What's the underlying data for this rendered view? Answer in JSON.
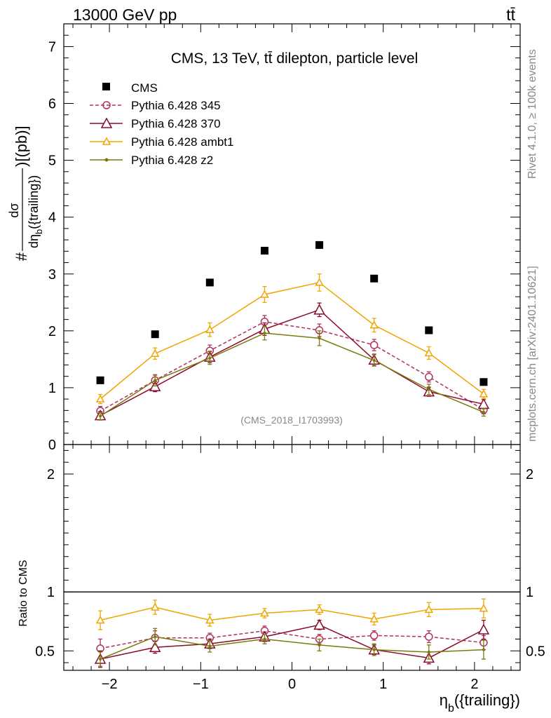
{
  "header": {
    "left": "13000 GeV pp",
    "right": "tt̄"
  },
  "side_labels": {
    "rivet": "Rivet 4.1.0, ≥ 100k events",
    "mcplots": "mcplots.cern.ch [arXiv:2401.10621]"
  },
  "colors": {
    "cms": "#000000",
    "p345": "#b03060",
    "p370": "#8b0a2a",
    "ambt1": "#f0a500",
    "z2": "#7a7a0a"
  },
  "chart_data": [
    {
      "type": "line",
      "panel": "main",
      "title": "CMS, 13 TeV, tt̄ dilepton, particle level",
      "watermark": "(CMS_2018_I1703993)",
      "ylabel_prefix": "#",
      "ylabel_frac_num": "dσ",
      "ylabel_frac_den": "dη",
      "ylabel_frac_den_sub": "b",
      "ylabel_frac_den_tail": "({trailing})",
      "ylabel_suffix": ")[(pb)]",
      "xlabel": "η",
      "xlabel_sub": "b",
      "xlabel_tail": "({trailing})",
      "xlim": [
        -2.5,
        2.5
      ],
      "ylim": [
        0,
        7.4
      ],
      "yticks": [
        "0",
        "1",
        "2",
        "3",
        "4",
        "5",
        "6",
        "7"
      ],
      "x": [
        -2.1,
        -1.5,
        -0.9,
        -0.3,
        0.3,
        0.9,
        1.5,
        2.1
      ],
      "series": [
        {
          "name": "CMS",
          "key": "cms",
          "marker": "square",
          "style": "none",
          "values": [
            1.13,
            1.94,
            2.85,
            3.41,
            3.51,
            2.92,
            2.01,
            1.1
          ],
          "err": [
            0,
            0,
            0,
            0,
            0,
            0,
            0,
            0
          ]
        },
        {
          "name": "Pythia 6.428 345",
          "key": "p345",
          "marker": "circle",
          "style": "dashed",
          "values": [
            0.59,
            1.13,
            1.65,
            2.16,
            2.01,
            1.75,
            1.19,
            0.61
          ],
          "err": [
            0.08,
            0.09,
            0.1,
            0.11,
            0.11,
            0.1,
            0.09,
            0.07
          ]
        },
        {
          "name": "Pythia 6.428 370",
          "key": "p370",
          "marker": "triangle",
          "style": "solid",
          "values": [
            0.51,
            1.02,
            1.54,
            2.03,
            2.37,
            1.49,
            0.93,
            0.71
          ],
          "err": [
            0.07,
            0.09,
            0.1,
            0.11,
            0.12,
            0.1,
            0.08,
            0.08
          ]
        },
        {
          "name": "Pythia 6.428 ambt1",
          "key": "ambt1",
          "marker": "triangle-small",
          "style": "solid",
          "values": [
            0.8,
            1.6,
            2.02,
            2.64,
            2.85,
            2.1,
            1.61,
            0.89
          ],
          "err": [
            0.08,
            0.1,
            0.12,
            0.14,
            0.15,
            0.12,
            0.11,
            0.08
          ]
        },
        {
          "name": "Pythia 6.428 z2",
          "key": "z2",
          "marker": "dot",
          "style": "solid",
          "values": [
            0.5,
            1.13,
            1.52,
            1.96,
            1.87,
            1.48,
            0.97,
            0.57
          ],
          "err": [
            0.07,
            0.1,
            0.11,
            0.12,
            0.13,
            0.1,
            0.09,
            0.07
          ]
        }
      ]
    },
    {
      "type": "line",
      "panel": "ratio",
      "ylabel": "Ratio to CMS",
      "xlim": [
        -2.5,
        2.5
      ],
      "ylim": [
        0.335,
        2.25
      ],
      "yticks": [
        "0.5",
        "1",
        "2"
      ],
      "xticks": [
        "−2",
        "−1",
        "0",
        "1",
        "2"
      ],
      "x": [
        -2.1,
        -1.5,
        -0.9,
        -0.3,
        0.3,
        0.9,
        1.5,
        2.1
      ],
      "reference": 1,
      "series": [
        {
          "name": "Pythia 6.428 345",
          "key": "p345",
          "marker": "circle",
          "style": "dashed",
          "values": [
            0.52,
            0.61,
            0.61,
            0.67,
            0.6,
            0.63,
            0.62,
            0.57
          ],
          "err": [
            0.08,
            0.06,
            0.04,
            0.04,
            0.04,
            0.04,
            0.05,
            0.06
          ]
        },
        {
          "name": "Pythia 6.428 370",
          "key": "p370",
          "marker": "triangle",
          "style": "solid",
          "values": [
            0.43,
            0.53,
            0.56,
            0.62,
            0.72,
            0.51,
            0.44,
            0.68
          ],
          "err": [
            0.07,
            0.05,
            0.04,
            0.04,
            0.04,
            0.04,
            0.05,
            0.08
          ]
        },
        {
          "name": "Pythia 6.428 ambt1",
          "key": "ambt1",
          "marker": "triangle-small",
          "style": "solid",
          "values": [
            0.76,
            0.87,
            0.76,
            0.82,
            0.85,
            0.77,
            0.85,
            0.86
          ],
          "err": [
            0.08,
            0.06,
            0.05,
            0.04,
            0.04,
            0.05,
            0.06,
            0.08
          ]
        },
        {
          "name": "Pythia 6.428 z2",
          "key": "z2",
          "marker": "dot",
          "style": "solid",
          "values": [
            0.43,
            0.62,
            0.54,
            0.6,
            0.55,
            0.51,
            0.49,
            0.51
          ],
          "err": [
            0.06,
            0.07,
            0.05,
            0.04,
            0.05,
            0.05,
            0.06,
            0.08
          ]
        }
      ]
    }
  ]
}
